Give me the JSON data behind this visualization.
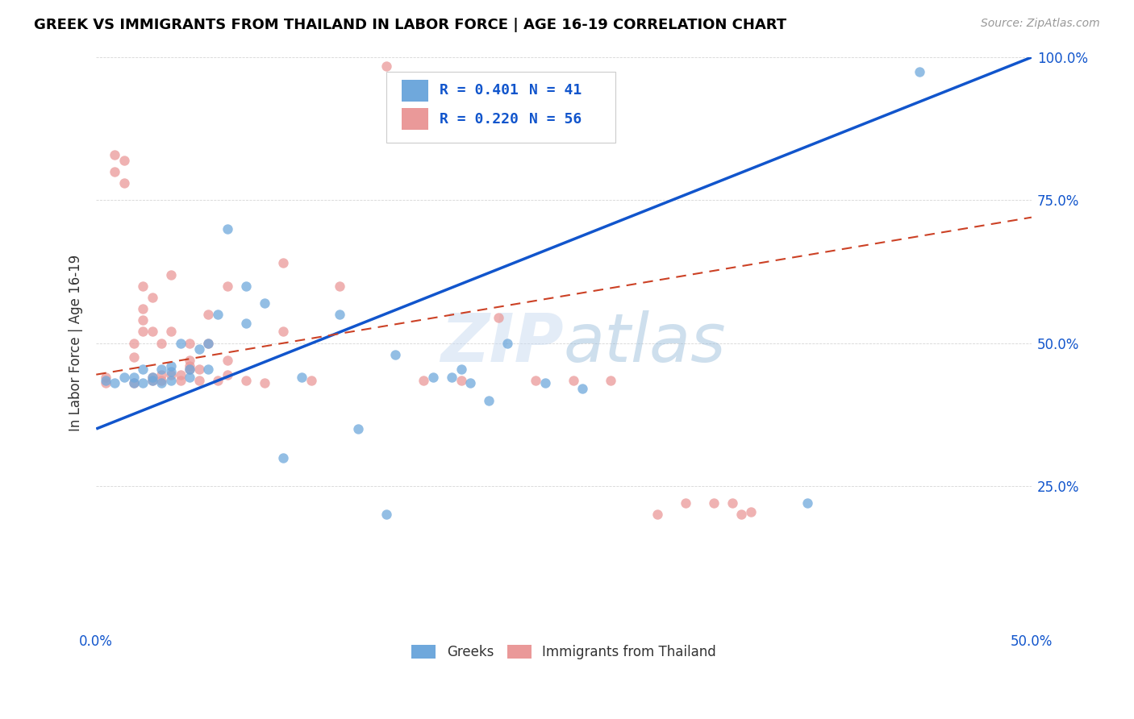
{
  "title": "GREEK VS IMMIGRANTS FROM THAILAND IN LABOR FORCE | AGE 16-19 CORRELATION CHART",
  "source": "Source: ZipAtlas.com",
  "ylabel": "In Labor Force | Age 16-19",
  "xlim": [
    0.0,
    0.5
  ],
  "ylim": [
    0.0,
    1.0
  ],
  "xticks": [
    0.0,
    0.1,
    0.2,
    0.3,
    0.4,
    0.5
  ],
  "xticklabels": [
    "0.0%",
    "",
    "",
    "",
    "",
    "50.0%"
  ],
  "yticks": [
    0.0,
    0.25,
    0.5,
    0.75,
    1.0
  ],
  "yticklabels": [
    "",
    "25.0%",
    "50.0%",
    "75.0%",
    "100.0%"
  ],
  "legend_R": [
    "R = 0.401",
    "R = 0.220"
  ],
  "legend_N": [
    "N = 41",
    "N = 56"
  ],
  "blue_color": "#6fa8dc",
  "pink_color": "#ea9999",
  "blue_line_color": "#1155cc",
  "pink_line_color": "#cc4125",
  "watermark_zip": "ZIP",
  "watermark_atlas": "atlas",
  "blue_scatter_x": [
    0.005,
    0.01,
    0.015,
    0.02,
    0.02,
    0.025,
    0.025,
    0.03,
    0.03,
    0.035,
    0.035,
    0.04,
    0.04,
    0.04,
    0.045,
    0.05,
    0.05,
    0.055,
    0.06,
    0.06,
    0.065,
    0.07,
    0.08,
    0.08,
    0.09,
    0.1,
    0.11,
    0.13,
    0.14,
    0.155,
    0.16,
    0.18,
    0.19,
    0.195,
    0.2,
    0.21,
    0.22,
    0.24,
    0.26,
    0.38,
    0.44
  ],
  "blue_scatter_y": [
    0.435,
    0.43,
    0.44,
    0.43,
    0.44,
    0.43,
    0.455,
    0.435,
    0.44,
    0.43,
    0.455,
    0.435,
    0.45,
    0.46,
    0.5,
    0.44,
    0.455,
    0.49,
    0.455,
    0.5,
    0.55,
    0.7,
    0.535,
    0.6,
    0.57,
    0.3,
    0.44,
    0.55,
    0.35,
    0.2,
    0.48,
    0.44,
    0.44,
    0.455,
    0.43,
    0.4,
    0.5,
    0.43,
    0.42,
    0.22,
    0.975
  ],
  "pink_scatter_x": [
    0.005,
    0.005,
    0.01,
    0.01,
    0.015,
    0.015,
    0.02,
    0.02,
    0.02,
    0.025,
    0.025,
    0.025,
    0.025,
    0.03,
    0.03,
    0.03,
    0.03,
    0.035,
    0.035,
    0.035,
    0.04,
    0.04,
    0.04,
    0.045,
    0.045,
    0.05,
    0.05,
    0.05,
    0.05,
    0.055,
    0.055,
    0.06,
    0.06,
    0.065,
    0.07,
    0.07,
    0.07,
    0.08,
    0.09,
    0.1,
    0.1,
    0.115,
    0.13,
    0.155,
    0.175,
    0.195,
    0.215,
    0.235,
    0.255,
    0.275,
    0.3,
    0.315,
    0.33,
    0.34,
    0.345,
    0.35
  ],
  "pink_scatter_y": [
    0.43,
    0.44,
    0.8,
    0.83,
    0.78,
    0.82,
    0.43,
    0.475,
    0.5,
    0.52,
    0.54,
    0.56,
    0.6,
    0.435,
    0.44,
    0.52,
    0.58,
    0.435,
    0.445,
    0.5,
    0.445,
    0.52,
    0.62,
    0.435,
    0.445,
    0.455,
    0.46,
    0.47,
    0.5,
    0.435,
    0.455,
    0.5,
    0.55,
    0.435,
    0.445,
    0.47,
    0.6,
    0.435,
    0.43,
    0.52,
    0.64,
    0.435,
    0.6,
    0.985,
    0.435,
    0.435,
    0.545,
    0.435,
    0.435,
    0.435,
    0.2,
    0.22,
    0.22,
    0.22,
    0.2,
    0.205
  ],
  "blue_line_x": [
    0.0,
    0.5
  ],
  "blue_line_y": [
    0.35,
    1.0
  ],
  "pink_line_x": [
    0.0,
    0.5
  ],
  "pink_line_y": [
    0.445,
    0.72
  ],
  "bg_color": "#ffffff",
  "title_color": "#000000",
  "tick_color": "#1155cc",
  "marker_size": 80
}
